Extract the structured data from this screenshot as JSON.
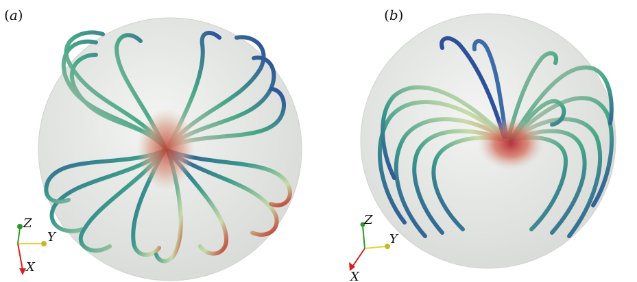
{
  "panels": [
    {
      "id": "a",
      "label": "a",
      "axes": {
        "z": "Z",
        "y": "Y",
        "x": "X"
      }
    },
    {
      "id": "b",
      "label": "b",
      "axes": {
        "z": "Z",
        "y": "Y",
        "x": "X"
      }
    }
  ],
  "colors": {
    "sphere": "#e4e6e4",
    "tube_low": "#2e4f9a",
    "tube_mid": "#3a9a8a",
    "tube_high": "#c8dcaa",
    "tube_peak": "#c0392b",
    "axis_x": "#d62020",
    "axis_y": "#e3d43a",
    "axis_z": "#2a9a2a"
  }
}
